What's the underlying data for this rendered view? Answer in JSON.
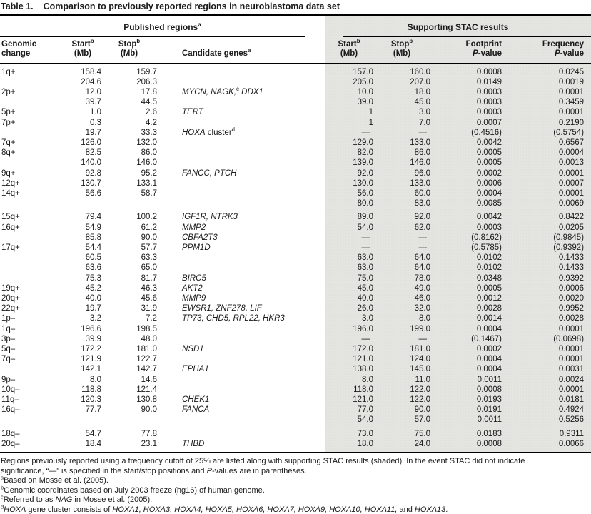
{
  "colors": {
    "shade": "#e4e4e1",
    "text": "#1a1a1a",
    "rule": "#000000"
  },
  "title": {
    "label": "Table 1.",
    "text": "Comparison to previously reported regions in neuroblastoma data set"
  },
  "groups": {
    "published": [
      [
        "Published regions",
        "r"
      ],
      [
        "a",
        "sup"
      ]
    ],
    "stac": "Supporting STAC results"
  },
  "columns": {
    "genomic": {
      "l1": "Genomic",
      "l2": "change"
    },
    "start": {
      "l1": [
        [
          "Start",
          "r"
        ],
        [
          "b",
          "sup"
        ]
      ],
      "l2": "(Mb)"
    },
    "stop": {
      "l1": [
        [
          "Stop",
          "r"
        ],
        [
          "b",
          "sup"
        ]
      ],
      "l2": "(Mb)"
    },
    "genes": {
      "l1": [
        [
          "Candidate genes",
          "r"
        ],
        [
          "a",
          "sup"
        ]
      ]
    },
    "footprint": {
      "l1": "Footprint",
      "l2": [
        [
          "P",
          "i"
        ],
        [
          "-value",
          "r"
        ]
      ]
    },
    "frequency": {
      "l1": "Frequency",
      "l2": [
        [
          "P",
          "i"
        ],
        [
          "-value",
          "r"
        ]
      ]
    }
  },
  "rows": [
    {
      "c": "1q+",
      "start": "158.4",
      "stop": "159.7",
      "genes": [],
      "ss": "157.0",
      "sp": "160.0",
      "fp": "0.0008",
      "fq": "0.0245"
    },
    {
      "c": "",
      "start": "204.6",
      "stop": "206.3",
      "genes": [],
      "ss": "205.0",
      "sp": "207.0",
      "fp": "0.0149",
      "fq": "0.0019"
    },
    {
      "c": "2p+",
      "start": "12.0",
      "stop": "17.8",
      "genes": [
        [
          "MYCN, NAGK,",
          "i"
        ],
        [
          "c",
          "sup"
        ],
        [
          " DDX1",
          "i"
        ]
      ],
      "ss": "10.0",
      "sp": "18.0",
      "fp": "0.0003",
      "fq": "0.0001"
    },
    {
      "c": "",
      "start": "39.7",
      "stop": "44.5",
      "genes": [],
      "ss": "39.0",
      "sp": "45.0",
      "fp": "0.0003",
      "fq": "0.3459"
    },
    {
      "c": "5p+",
      "start": "1.0",
      "stop": "2.6",
      "genes": [
        [
          "TERT",
          "i"
        ]
      ],
      "ss": "1",
      "sp": "3.0",
      "fp": "0.0003",
      "fq": "0.0001"
    },
    {
      "c": "7p+",
      "start": "0.3",
      "stop": "4.2",
      "genes": [],
      "ss": "1",
      "sp": "7.0",
      "fp": "0.0007",
      "fq": "0.2190"
    },
    {
      "c": "",
      "start": "19.7",
      "stop": "33.3",
      "genes": [
        [
          "HOXA",
          "i"
        ],
        [
          " cluster",
          "r"
        ],
        [
          "d",
          "sup"
        ]
      ],
      "ss": "—",
      "sp": "—",
      "fp": "(0.4516)",
      "fq": "(0.5754)"
    },
    {
      "c": "7q+",
      "start": "126.0",
      "stop": "132.0",
      "genes": [],
      "ss": "129.0",
      "sp": "133.0",
      "fp": "0.0042",
      "fq": "0.6567"
    },
    {
      "c": "8q+",
      "start": "82.5",
      "stop": "86.0",
      "genes": [],
      "ss": "82.0",
      "sp": "86.0",
      "fp": "0.0005",
      "fq": "0.0004"
    },
    {
      "c": "",
      "start": "140.0",
      "stop": "146.0",
      "genes": [],
      "ss": "139.0",
      "sp": "146.0",
      "fp": "0.0005",
      "fq": "0.0013"
    },
    {
      "c": "9q+",
      "start": "92.8",
      "stop": "95.2",
      "genes": [
        [
          "FANCC, PTCH",
          "i"
        ]
      ],
      "ss": "92.0",
      "sp": "96.0",
      "fp": "0.0002",
      "fq": "0.0001"
    },
    {
      "c": "12q+",
      "start": "130.7",
      "stop": "133.1",
      "genes": [],
      "ss": "130.0",
      "sp": "133.0",
      "fp": "0.0006",
      "fq": "0.0007"
    },
    {
      "c": "14q+",
      "start": "56.6",
      "stop": "58.7",
      "genes": [],
      "ss": "56.0",
      "sp": "60.0",
      "fp": "0.0004",
      "fq": "0.0001"
    },
    {
      "c": "",
      "start": "",
      "stop": "",
      "genes": [],
      "ss": "80.0",
      "sp": "83.0",
      "fp": "0.0085",
      "fq": "0.0069"
    },
    {
      "c": "15q+",
      "start": "79.4",
      "stop": "100.2",
      "genes": [
        [
          "IGF1R, NTRK3",
          "i"
        ]
      ],
      "ss": "89.0",
      "sp": "92.0",
      "fp": "0.0042",
      "fq": "0.8422",
      "gap": true
    },
    {
      "c": "16q+",
      "start": "54.9",
      "stop": "61.2",
      "genes": [
        [
          "MMP2",
          "i"
        ]
      ],
      "ss": "54.0",
      "sp": "62.0",
      "fp": "0.0003",
      "fq": "0.0205"
    },
    {
      "c": "",
      "start": "85.8",
      "stop": "90.0",
      "genes": [
        [
          "CBFA2T3",
          "i"
        ]
      ],
      "ss": "—",
      "sp": "—",
      "fp": "(0.8162)",
      "fq": "(0.9845)"
    },
    {
      "c": "17q+",
      "start": "54.4",
      "stop": "57.7",
      "genes": [
        [
          "PPM1D",
          "i"
        ]
      ],
      "ss": "—",
      "sp": "—",
      "fp": "(0.5785)",
      "fq": "(0.9392)"
    },
    {
      "c": "",
      "start": "60.5",
      "stop": "63.3",
      "genes": [],
      "ss": "63.0",
      "sp": "64.0",
      "fp": "0.0102",
      "fq": "0.1433"
    },
    {
      "c": "",
      "start": "63.6",
      "stop": "65.0",
      "genes": [],
      "ss": "63.0",
      "sp": "64.0",
      "fp": "0.0102",
      "fq": "0.1433"
    },
    {
      "c": "",
      "start": "75.3",
      "stop": "81.7",
      "genes": [
        [
          "BIRC5",
          "i"
        ]
      ],
      "ss": "75.0",
      "sp": "78.0",
      "fp": "0.0348",
      "fq": "0.9392"
    },
    {
      "c": "19q+",
      "start": "45.2",
      "stop": "46.3",
      "genes": [
        [
          "AKT2",
          "i"
        ]
      ],
      "ss": "45.0",
      "sp": "49.0",
      "fp": "0.0005",
      "fq": "0.0006"
    },
    {
      "c": "20q+",
      "start": "40.0",
      "stop": "45.6",
      "genes": [
        [
          "MMP9",
          "i"
        ]
      ],
      "ss": "40.0",
      "sp": "46.0",
      "fp": "0.0012",
      "fq": "0.0020"
    },
    {
      "c": "22q+",
      "start": "19.7",
      "stop": "31.9",
      "genes": [
        [
          "EWSR1, ZNF278, LIF",
          "i"
        ]
      ],
      "ss": "26.0",
      "sp": "32.0",
      "fp": "0.0028",
      "fq": "0.9952"
    },
    {
      "c": "1p–",
      "start": "3.2",
      "stop": "7.2",
      "genes": [
        [
          "TP73, CHD5, RPL22, HKR3",
          "i"
        ]
      ],
      "ss": "3.0",
      "sp": "8.0",
      "fp": "0.0014",
      "fq": "0.0028"
    },
    {
      "c": "1q–",
      "start": "196.6",
      "stop": "198.5",
      "genes": [],
      "ss": "196.0",
      "sp": "199.0",
      "fp": "0.0004",
      "fq": "0.0001"
    },
    {
      "c": "3p–",
      "start": "39.9",
      "stop": "48.0",
      "genes": [],
      "ss": "—",
      "sp": "—",
      "fp": "(0.1467)",
      "fq": "(0.0698)"
    },
    {
      "c": "5q–",
      "start": "172.2",
      "stop": "181.0",
      "genes": [
        [
          "NSD1",
          "i"
        ]
      ],
      "ss": "172.0",
      "sp": "181.0",
      "fp": "0.0002",
      "fq": "0.0001"
    },
    {
      "c": "7q–",
      "start": "121.9",
      "stop": "122.7",
      "genes": [],
      "ss": "121.0",
      "sp": "124.0",
      "fp": "0.0004",
      "fq": "0.0001"
    },
    {
      "c": "",
      "start": "142.1",
      "stop": "142.7",
      "genes": [
        [
          "EPHA1",
          "i"
        ]
      ],
      "ss": "138.0",
      "sp": "145.0",
      "fp": "0.0004",
      "fq": "0.0031"
    },
    {
      "c": "9p–",
      "start": "8.0",
      "stop": "14.6",
      "genes": [],
      "ss": "8.0",
      "sp": "11.0",
      "fp": "0.0011",
      "fq": "0.0024"
    },
    {
      "c": "10q–",
      "start": "118.8",
      "stop": "121.4",
      "genes": [],
      "ss": "118.0",
      "sp": "122.0",
      "fp": "0.0008",
      "fq": "0.0001"
    },
    {
      "c": "11q–",
      "start": "120.3",
      "stop": "130.8",
      "genes": [
        [
          "CHEK1",
          "i"
        ]
      ],
      "ss": "121.0",
      "sp": "122.0",
      "fp": "0.0193",
      "fq": "0.0181"
    },
    {
      "c": "16q–",
      "start": "77.7",
      "stop": "90.0",
      "genes": [
        [
          "FANCA",
          "i"
        ]
      ],
      "ss": "77.0",
      "sp": "90.0",
      "fp": "0.0191",
      "fq": "0.4924"
    },
    {
      "c": "",
      "start": "",
      "stop": "",
      "genes": [],
      "ss": "54.0",
      "sp": "57.0",
      "fp": "0.0011",
      "fq": "0.5256"
    },
    {
      "c": "18q–",
      "start": "54.7",
      "stop": "77.8",
      "genes": [],
      "ss": "73.0",
      "sp": "75.0",
      "fp": "0.0183",
      "fq": "0.9311",
      "gap": true
    },
    {
      "c": "20q–",
      "start": "18.4",
      "stop": "23.1",
      "genes": [
        [
          "THBD",
          "i"
        ]
      ],
      "ss": "18.0",
      "sp": "24.0",
      "fp": "0.0008",
      "fq": "0.0066"
    }
  ],
  "footnotes": [
    [
      [
        "Regions previously reported using a frequency cutoff of 25% are listed along with supporting STAC results (shaded). In the event STAC did not indicate",
        "r"
      ]
    ],
    [
      [
        "significance, “—” is specified in the start/stop positions and ",
        "r"
      ],
      [
        "P",
        "i"
      ],
      [
        "-values are in parentheses.",
        "r"
      ]
    ],
    [
      [
        "a",
        "sup"
      ],
      [
        "Based on Mosse et al. (2005).",
        "r"
      ]
    ],
    [
      [
        "b",
        "sup"
      ],
      [
        "Genomic coordinates based on July 2003 freeze (hg16) of human genome.",
        "r"
      ]
    ],
    [
      [
        "c",
        "sup"
      ],
      [
        "Referred to as ",
        "r"
      ],
      [
        "NAG",
        "i"
      ],
      [
        " in Mosse et al. (2005).",
        "r"
      ]
    ],
    [
      [
        "d",
        "sup"
      ],
      [
        "HOXA",
        "i"
      ],
      [
        " gene cluster consists of ",
        "r"
      ],
      [
        "HOXA1, HOXA3, HOXA4, HOXA5, HOXA6, HOXA7, HOXA9, HOXA10, HOXA11,",
        "i"
      ],
      [
        " and ",
        "r"
      ],
      [
        "HOXA13",
        "i"
      ],
      [
        ".",
        "r"
      ]
    ]
  ]
}
